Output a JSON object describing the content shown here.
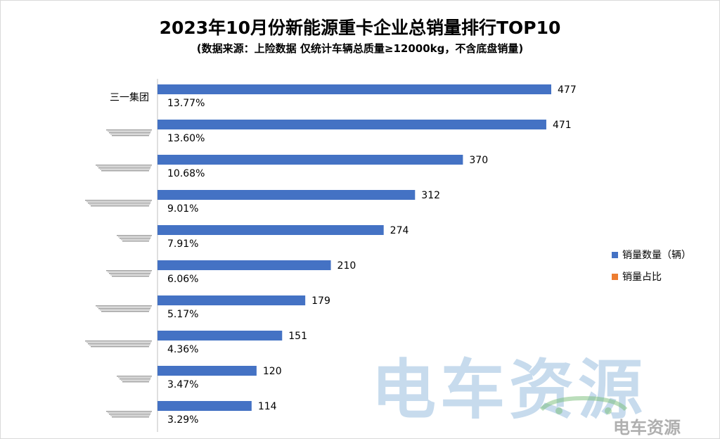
{
  "chart_data": {
    "type": "bar",
    "orientation": "horizontal",
    "title": "2023年10月份新能源重卡企业总销量排行TOP10",
    "subtitle": "(数据来源：上险数据 仅统计车辆总质量≥12000kg，不含底盘销量)",
    "categories": [
      "三一集团",
      "",
      "",
      "",
      "",
      "",
      "",
      "",
      "",
      ""
    ],
    "series": [
      {
        "name": "销量数量（辆）",
        "color": "#4472C4",
        "values": [
          477,
          471,
          370,
          312,
          274,
          210,
          179,
          151,
          120,
          114
        ]
      },
      {
        "name": "销量占比",
        "color": "#ED7D31",
        "values": [
          "13.77%",
          "13.60%",
          "10.68%",
          "9.01%",
          "7.91%",
          "6.06%",
          "5.17%",
          "4.36%",
          "3.47%",
          "3.29%"
        ]
      }
    ],
    "xlim": [
      0,
      477
    ],
    "legend_position": "right",
    "grid": false
  },
  "watermark": {
    "text": "电车资源",
    "small_text": "电车资源"
  }
}
